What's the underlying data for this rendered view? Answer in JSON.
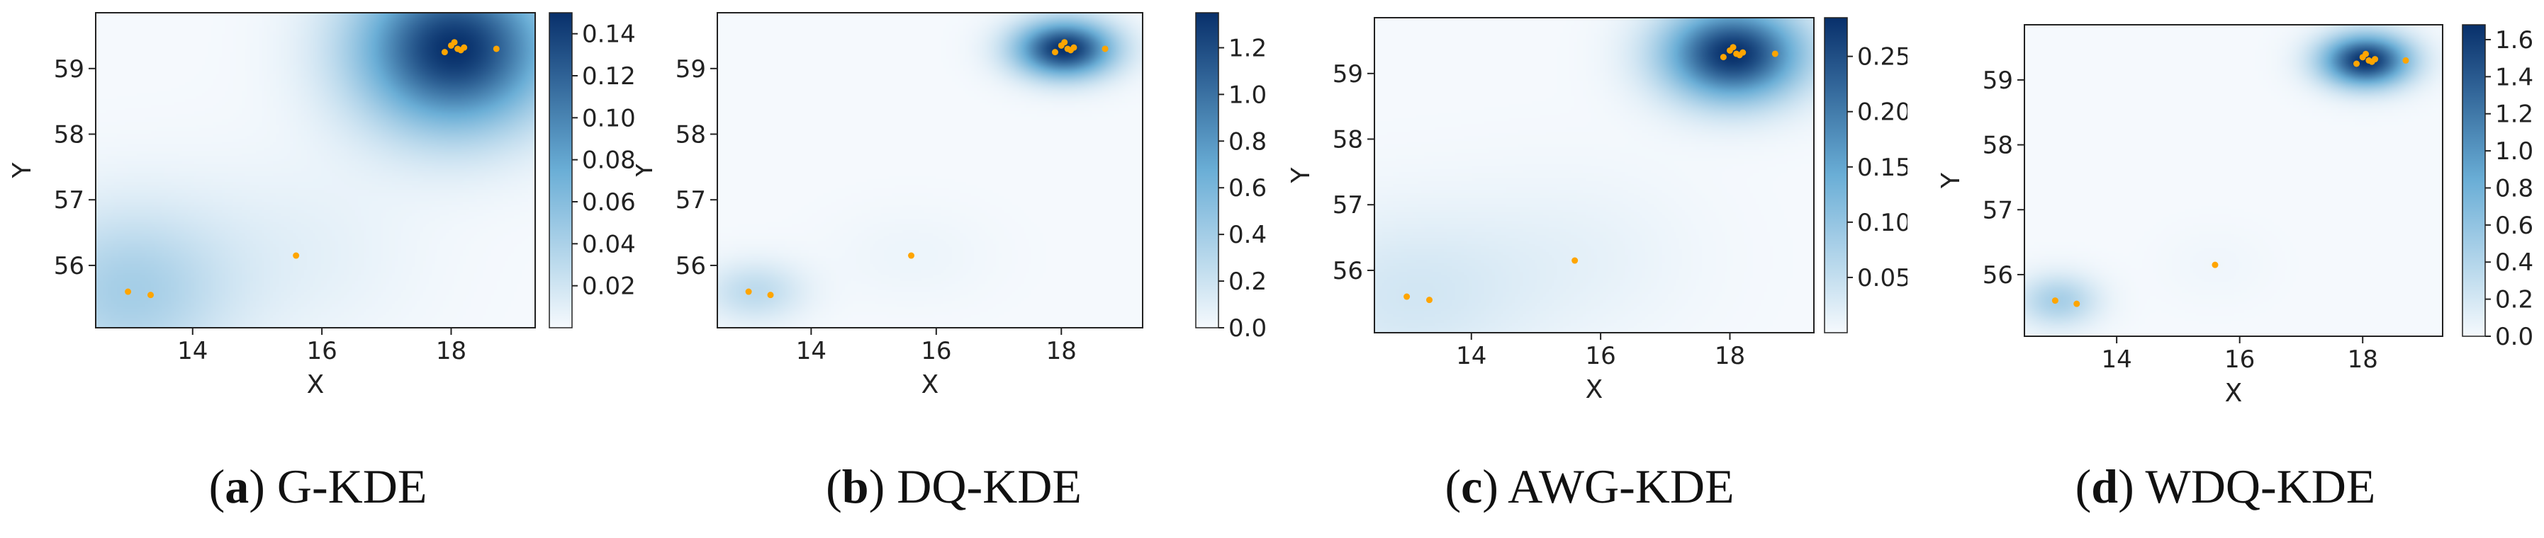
{
  "colors": {
    "cmap_low": "#f5f9fd",
    "cmap_mid": "#6aaed6",
    "cmap_high": "#08306b",
    "points": "#ffa500"
  },
  "chart_data": [
    {
      "type": "heatmap",
      "caption_letter": "a",
      "caption_open": "(",
      "caption_close": ")",
      "caption_text": " G-KDE",
      "xlabel": "X",
      "ylabel": "Y",
      "xlim": [
        12.5,
        19.3
      ],
      "ylim": [
        55.05,
        59.85
      ],
      "xticks": [
        14,
        16,
        18
      ],
      "yticks": [
        56,
        57,
        58,
        59
      ],
      "colorbar": {
        "min": 0.0,
        "max": 0.15,
        "ticks": [
          "0.02",
          "0.04",
          "0.06",
          "0.08",
          "0.10",
          "0.12",
          "0.14"
        ],
        "tick_values": [
          0.02,
          0.04,
          0.06,
          0.08,
          0.1,
          0.12,
          0.14
        ]
      },
      "kernels": [
        {
          "x": 18.05,
          "y": 59.3,
          "sx": 1.05,
          "sy": 0.85,
          "w": 1.0
        },
        {
          "x": 13.0,
          "y": 55.6,
          "sx": 1.1,
          "sy": 0.9,
          "w": 0.28
        },
        {
          "x": 15.6,
          "y": 56.2,
          "sx": 1.3,
          "sy": 1.0,
          "w": 0.06
        }
      ],
      "points": [
        {
          "x": 18.0,
          "y": 59.35
        },
        {
          "x": 18.1,
          "y": 59.3
        },
        {
          "x": 18.05,
          "y": 59.4
        },
        {
          "x": 18.15,
          "y": 59.28
        },
        {
          "x": 17.9,
          "y": 59.25
        },
        {
          "x": 18.2,
          "y": 59.32
        },
        {
          "x": 18.7,
          "y": 59.3
        },
        {
          "x": 13.0,
          "y": 55.6
        },
        {
          "x": 13.35,
          "y": 55.55
        },
        {
          "x": 15.6,
          "y": 56.15
        }
      ]
    },
    {
      "type": "heatmap",
      "caption_letter": "b",
      "caption_open": "(",
      "caption_close": ")",
      "caption_text": " DQ-KDE",
      "xlabel": "X",
      "ylabel": "Y",
      "xlim": [
        12.5,
        19.3
      ],
      "ylim": [
        55.05,
        59.85
      ],
      "xticks": [
        14,
        16,
        18
      ],
      "yticks": [
        56,
        57,
        58,
        59
      ],
      "colorbar": {
        "min": 0.0,
        "max": 1.35,
        "ticks": [
          "0.0",
          "0.2",
          "0.4",
          "0.6",
          "0.8",
          "1.0",
          "1.2"
        ],
        "tick_values": [
          0.0,
          0.2,
          0.4,
          0.6,
          0.8,
          1.0,
          1.2
        ]
      },
      "kernels": [
        {
          "x": 18.05,
          "y": 59.3,
          "sx": 0.55,
          "sy": 0.3,
          "w": 1.0
        },
        {
          "x": 13.1,
          "y": 55.6,
          "sx": 0.55,
          "sy": 0.32,
          "w": 0.2
        },
        {
          "x": 15.6,
          "y": 56.15,
          "sx": 0.9,
          "sy": 0.5,
          "w": 0.03
        }
      ],
      "points": [
        {
          "x": 18.0,
          "y": 59.35
        },
        {
          "x": 18.1,
          "y": 59.3
        },
        {
          "x": 18.05,
          "y": 59.4
        },
        {
          "x": 18.15,
          "y": 59.28
        },
        {
          "x": 17.9,
          "y": 59.25
        },
        {
          "x": 18.2,
          "y": 59.32
        },
        {
          "x": 18.7,
          "y": 59.3
        },
        {
          "x": 13.0,
          "y": 55.6
        },
        {
          "x": 13.35,
          "y": 55.55
        },
        {
          "x": 15.6,
          "y": 56.15
        }
      ]
    },
    {
      "type": "heatmap",
      "caption_letter": "c",
      "caption_open": "(",
      "caption_close": ")",
      "caption_text": " AWG-KDE",
      "xlabel": "X",
      "ylabel": "Y",
      "xlim": [
        12.5,
        19.3
      ],
      "ylim": [
        55.05,
        59.85
      ],
      "xticks": [
        14,
        16,
        18
      ],
      "yticks": [
        56,
        57,
        58,
        59
      ],
      "colorbar": {
        "min": 0.0,
        "max": 0.285,
        "ticks": [
          "0.05",
          "0.10",
          "0.15",
          "0.20",
          "0.25"
        ],
        "tick_values": [
          0.05,
          0.1,
          0.15,
          0.2,
          0.25
        ]
      },
      "kernels": [
        {
          "x": 18.05,
          "y": 59.3,
          "sx": 0.75,
          "sy": 0.5,
          "w": 1.0
        },
        {
          "x": 13.0,
          "y": 55.6,
          "sx": 1.3,
          "sy": 0.9,
          "w": 0.12
        },
        {
          "x": 15.6,
          "y": 56.2,
          "sx": 1.3,
          "sy": 0.9,
          "w": 0.05
        }
      ],
      "points": [
        {
          "x": 18.0,
          "y": 59.35
        },
        {
          "x": 18.1,
          "y": 59.3
        },
        {
          "x": 18.05,
          "y": 59.4
        },
        {
          "x": 18.15,
          "y": 59.28
        },
        {
          "x": 17.9,
          "y": 59.25
        },
        {
          "x": 18.2,
          "y": 59.32
        },
        {
          "x": 18.7,
          "y": 59.3
        },
        {
          "x": 13.0,
          "y": 55.6
        },
        {
          "x": 13.35,
          "y": 55.55
        },
        {
          "x": 15.6,
          "y": 56.15
        }
      ]
    },
    {
      "type": "heatmap",
      "caption_letter": "d",
      "caption_open": "(",
      "caption_close": ")",
      "caption_text": " WDQ-KDE",
      "xlabel": "X",
      "ylabel": "Y",
      "xlim": [
        12.5,
        19.3
      ],
      "ylim": [
        55.05,
        59.85
      ],
      "xticks": [
        14,
        16,
        18
      ],
      "yticks": [
        56,
        57,
        58,
        59
      ],
      "colorbar": {
        "min": 0.0,
        "max": 1.68,
        "ticks": [
          "0.0",
          "0.2",
          "0.4",
          "0.6",
          "0.8",
          "1.0",
          "1.2",
          "1.4",
          "1.6"
        ],
        "tick_values": [
          0.0,
          0.2,
          0.4,
          0.6,
          0.8,
          1.0,
          1.2,
          1.4,
          1.6
        ]
      },
      "kernels": [
        {
          "x": 18.05,
          "y": 59.3,
          "sx": 0.5,
          "sy": 0.28,
          "w": 1.0
        },
        {
          "x": 13.05,
          "y": 55.6,
          "sx": 0.45,
          "sy": 0.28,
          "w": 0.28
        },
        {
          "x": 15.6,
          "y": 56.15,
          "sx": 0.6,
          "sy": 0.4,
          "w": 0.02
        }
      ],
      "points": [
        {
          "x": 18.0,
          "y": 59.35
        },
        {
          "x": 18.1,
          "y": 59.3
        },
        {
          "x": 18.05,
          "y": 59.4
        },
        {
          "x": 18.15,
          "y": 59.28
        },
        {
          "x": 17.9,
          "y": 59.25
        },
        {
          "x": 18.2,
          "y": 59.32
        },
        {
          "x": 18.7,
          "y": 59.3
        },
        {
          "x": 13.0,
          "y": 55.6
        },
        {
          "x": 13.35,
          "y": 55.55
        },
        {
          "x": 15.6,
          "y": 56.15
        }
      ]
    }
  ]
}
